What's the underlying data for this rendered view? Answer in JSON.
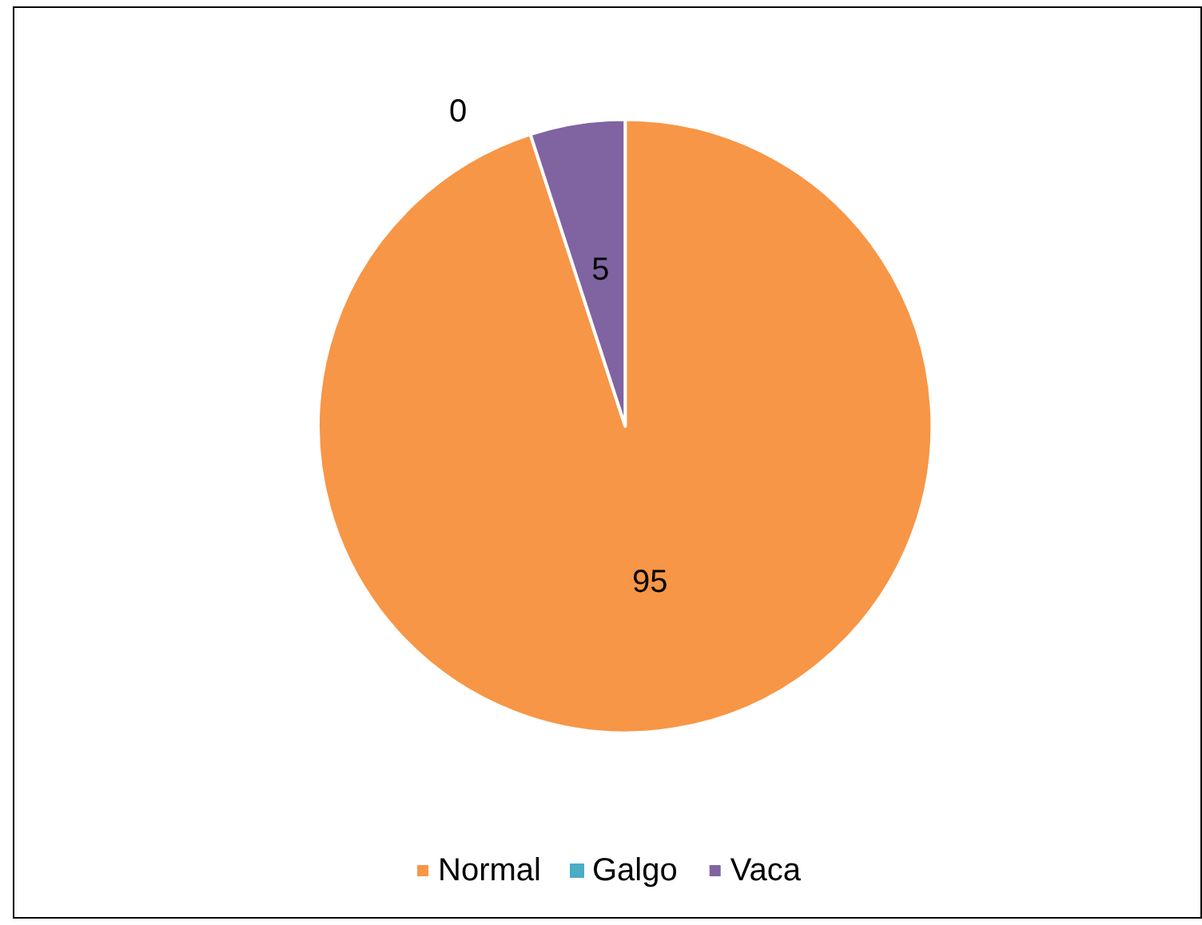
{
  "chart_data": {
    "type": "pie",
    "categories": [
      "Normal",
      "Galgo",
      "Vaca"
    ],
    "values": [
      95,
      0,
      5
    ],
    "value_labels": [
      "95",
      "0",
      "5"
    ],
    "colors": [
      "#f79646",
      "#4bacc6",
      "#8064a2"
    ],
    "legend": "bottom"
  }
}
